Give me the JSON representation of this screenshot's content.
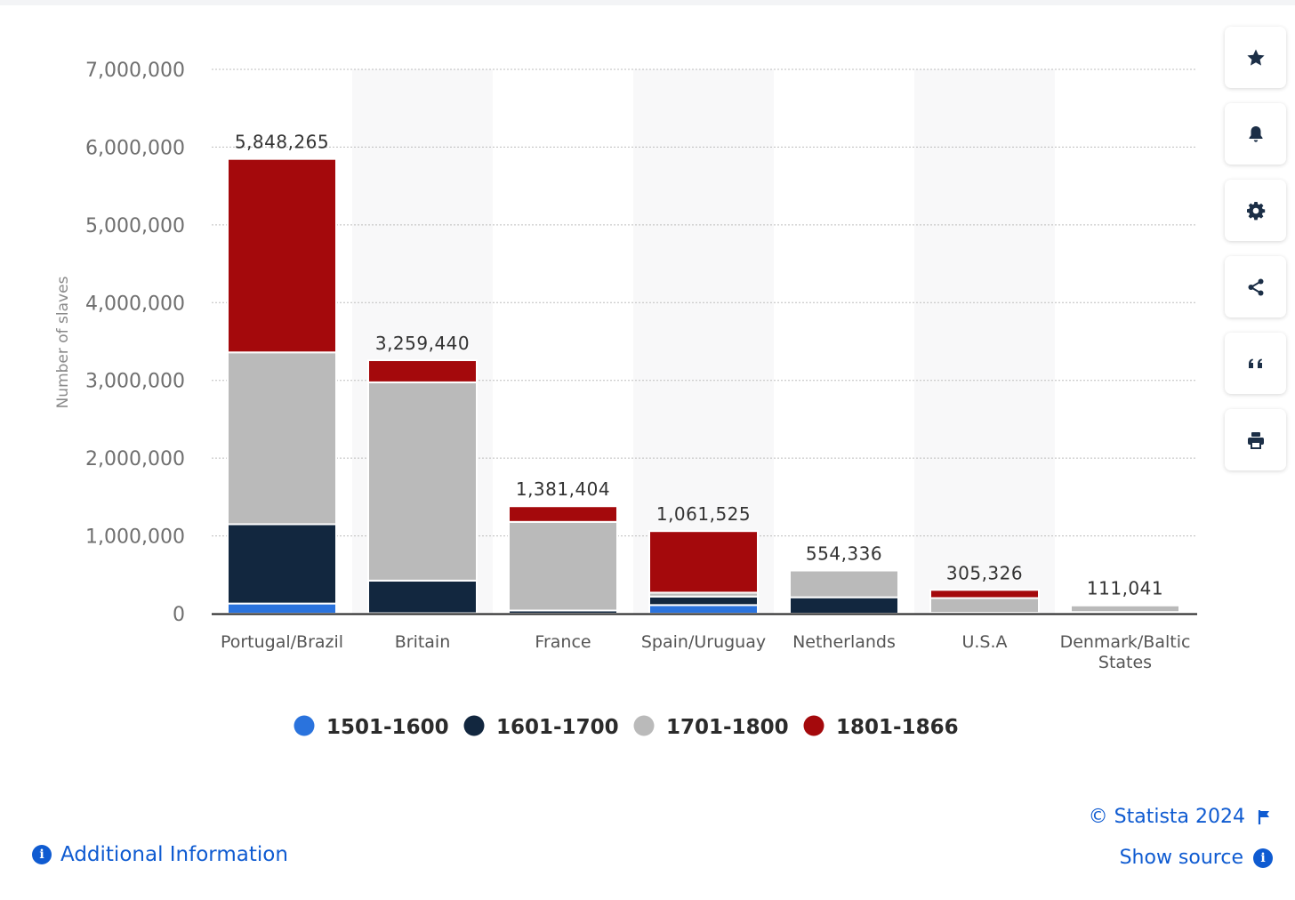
{
  "chart_data": {
    "type": "bar",
    "stacked": true,
    "title": "",
    "xlabel": "",
    "ylabel": "Number of slaves",
    "ylim": [
      0,
      7000000
    ],
    "yticks": [
      0,
      1000000,
      2000000,
      3000000,
      4000000,
      5000000,
      6000000,
      7000000
    ],
    "ytick_labels": [
      "0",
      "1,000,000",
      "2,000,000",
      "3,000,000",
      "4,000,000",
      "5,000,000",
      "6,000,000",
      "7,000,000"
    ],
    "grid": true,
    "legend_position": "bottom",
    "categories": [
      "Portugal/Brazil",
      "Britain",
      "France",
      "Spain/Uruguay",
      "Netherlands",
      "U.S.A",
      "Denmark/Baltic States"
    ],
    "category_label_lines": [
      [
        "Portugal/Brazil"
      ],
      [
        "Britain"
      ],
      [
        "France"
      ],
      [
        "Spain/Uruguay"
      ],
      [
        "Netherlands"
      ],
      [
        "U.S.A"
      ],
      [
        "Denmark/Baltic",
        "States"
      ]
    ],
    "totals": [
      "5,848,265",
      "3,259,440",
      "1,381,404",
      "1,061,525",
      "554,336",
      "305,326",
      "111,041"
    ],
    "series": [
      {
        "name": "1501-1600",
        "color": "#2a73dd",
        "values": [
          130000,
          5000,
          0,
          110000,
          0,
          0,
          0
        ]
      },
      {
        "name": "1601-1700",
        "color": "#12273f",
        "values": [
          1020000,
          420000,
          40000,
          110000,
          210000,
          10000,
          20000
        ]
      },
      {
        "name": "1701-1800",
        "color": "#bababa",
        "values": [
          2210000,
          2550000,
          1140000,
          50000,
          344336,
          190000,
          90000
        ]
      },
      {
        "name": "1801-1866",
        "color": "#a4090c",
        "values": [
          2488265,
          284440,
          201404,
          791525,
          0,
          105326,
          1041
        ]
      }
    ]
  },
  "footer": {
    "additional_info": "Additional Information",
    "copyright": "© Statista 2024",
    "show_source": "Show source"
  },
  "toolbar": {
    "icons": [
      "star-icon",
      "bell-icon",
      "gear-icon",
      "share-icon",
      "quote-icon",
      "print-icon"
    ]
  }
}
